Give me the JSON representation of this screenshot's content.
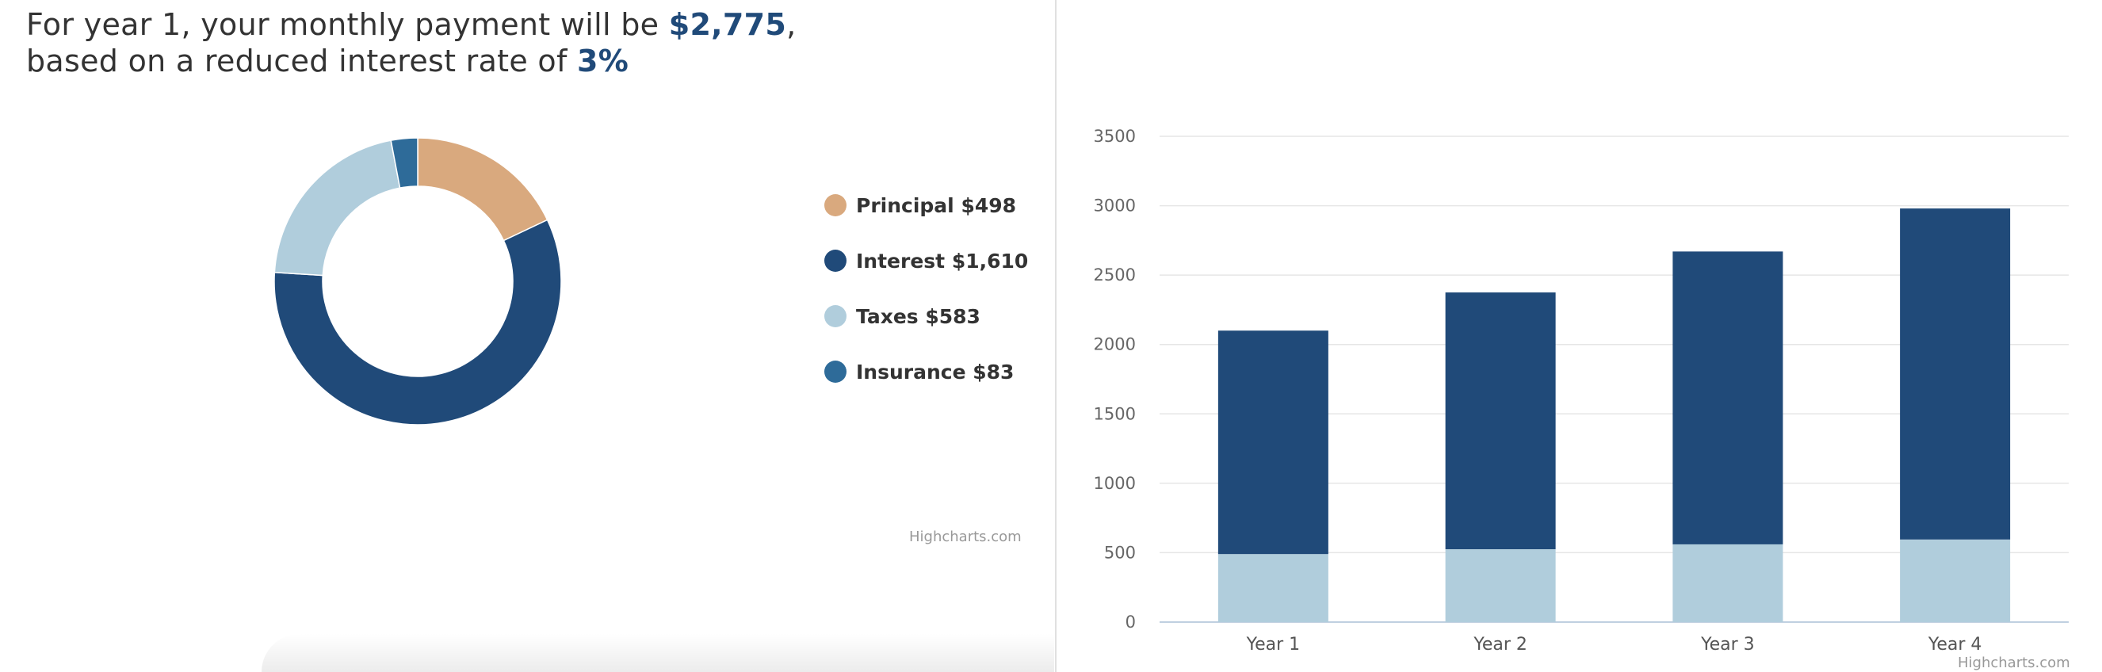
{
  "headline": {
    "prefix": "For year 1, your monthly payment will be ",
    "payment": "$2,775",
    "comma": ",",
    "line2_prefix": "based on a reduced interest rate of ",
    "rate": "3%"
  },
  "colors": {
    "principal": "#d9a97e",
    "interest": "#204a79",
    "taxes": "#b0cddc",
    "insurance": "#2e6b99",
    "headline_accent": "#204a79"
  },
  "chart_data": [
    {
      "type": "pie",
      "variant": "donut",
      "legend_position": "right",
      "slices": [
        {
          "name": "Principal",
          "label": "Principal $498",
          "value": 498,
          "color": "#d9a97e"
        },
        {
          "name": "Interest",
          "label": "Interest $1,610",
          "value": 1610,
          "color": "#204a79"
        },
        {
          "name": "Taxes",
          "label": "Taxes $583",
          "value": 583,
          "color": "#b0cddc"
        },
        {
          "name": "Insurance",
          "label": "Insurance $83",
          "value": 83,
          "color": "#2e6b99"
        }
      ],
      "credit": "Highcharts.com"
    },
    {
      "type": "bar",
      "stacked": true,
      "categories": [
        "Year 1",
        "Year 2",
        "Year 3",
        "Year 4"
      ],
      "series": [
        {
          "values": [
            490,
            525,
            560,
            595
          ],
          "color": "#b0cddc"
        },
        {
          "values": [
            1610,
            1850,
            2110,
            2385
          ],
          "color": "#204a79"
        }
      ],
      "yticks": [
        0,
        500,
        1000,
        1500,
        2000,
        2500,
        3000,
        3500
      ],
      "ylim": [
        0,
        3500
      ],
      "grid": true,
      "credit": "Highcharts.com"
    }
  ]
}
